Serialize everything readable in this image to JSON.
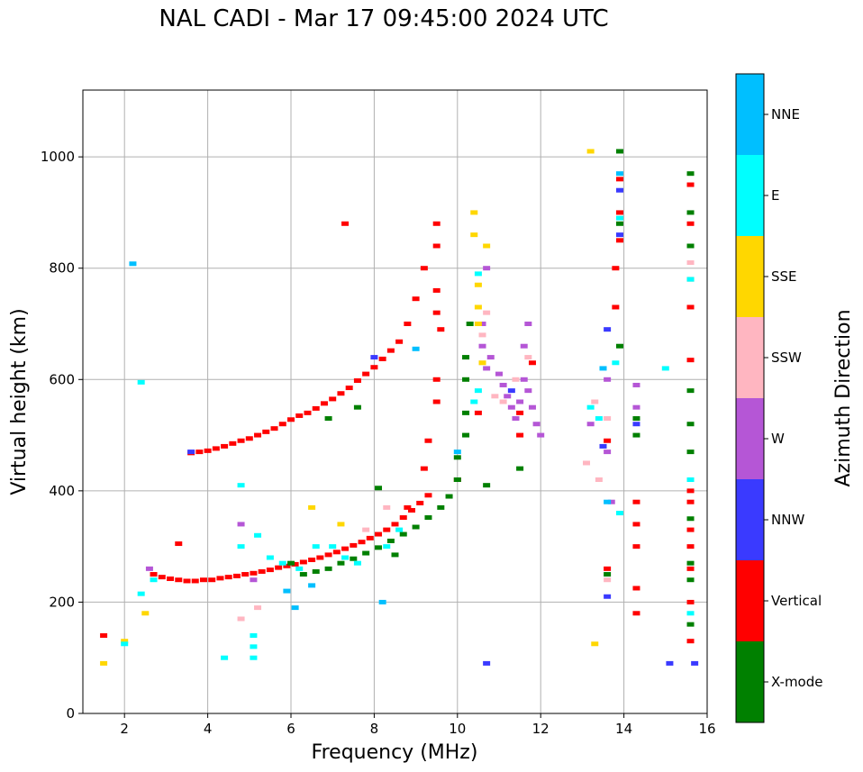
{
  "chart_data": {
    "type": "scatter",
    "title": "NAL CADI - Mar 17 09:45:00 2024 UTC",
    "xlabel": "Frequency (MHz)",
    "ylabel": "Virtual height (km)",
    "xlim": [
      1,
      16
    ],
    "ylim": [
      0,
      1120
    ],
    "xticks": [
      2,
      4,
      6,
      8,
      10,
      12,
      14,
      16
    ],
    "yticks": [
      0,
      200,
      400,
      600,
      800,
      1000
    ],
    "grid": true,
    "colorbar": {
      "label": "Azimuth Direction",
      "categories": [
        {
          "name": "X-mode",
          "color": "#008000"
        },
        {
          "name": "Vertical",
          "color": "#ff0000"
        },
        {
          "name": "NNW",
          "color": "#3a3aff"
        },
        {
          "name": "W",
          "color": "#b556d6"
        },
        {
          "name": "SSW",
          "color": "#ffb6c1"
        },
        {
          "name": "SSE",
          "color": "#ffd700"
        },
        {
          "name": "E",
          "color": "#00ffff"
        },
        {
          "name": "NNE",
          "color": "#00bfff"
        }
      ]
    },
    "series": [
      {
        "name": "Vertical",
        "points": [
          [
            2.7,
            250
          ],
          [
            2.9,
            245
          ],
          [
            3.1,
            242
          ],
          [
            3.3,
            240
          ],
          [
            3.5,
            238
          ],
          [
            3.7,
            238
          ],
          [
            3.9,
            240
          ],
          [
            4.1,
            240
          ],
          [
            4.3,
            243
          ],
          [
            4.5,
            245
          ],
          [
            4.7,
            247
          ],
          [
            4.9,
            250
          ],
          [
            5.1,
            252
          ],
          [
            5.3,
            255
          ],
          [
            5.5,
            258
          ],
          [
            5.7,
            262
          ],
          [
            5.9,
            265
          ],
          [
            6.1,
            268
          ],
          [
            6.3,
            272
          ],
          [
            6.5,
            276
          ],
          [
            6.7,
            280
          ],
          [
            6.9,
            285
          ],
          [
            7.1,
            290
          ],
          [
            7.3,
            296
          ],
          [
            7.5,
            302
          ],
          [
            7.7,
            308
          ],
          [
            7.9,
            315
          ],
          [
            8.1,
            322
          ],
          [
            8.3,
            330
          ],
          [
            8.5,
            340
          ],
          [
            8.7,
            352
          ],
          [
            8.9,
            365
          ],
          [
            9.1,
            378
          ],
          [
            9.3,
            392
          ],
          [
            3.6,
            468
          ],
          [
            3.8,
            470
          ],
          [
            4.0,
            472
          ],
          [
            4.2,
            476
          ],
          [
            4.4,
            480
          ],
          [
            4.6,
            485
          ],
          [
            4.8,
            490
          ],
          [
            5.0,
            494
          ],
          [
            5.2,
            500
          ],
          [
            5.4,
            506
          ],
          [
            5.6,
            512
          ],
          [
            5.8,
            520
          ],
          [
            6.0,
            528
          ],
          [
            6.2,
            535
          ],
          [
            6.4,
            540
          ],
          [
            6.6,
            548
          ],
          [
            6.8,
            557
          ],
          [
            7.0,
            565
          ],
          [
            7.2,
            575
          ],
          [
            7.4,
            585
          ],
          [
            7.6,
            598
          ],
          [
            7.8,
            610
          ],
          [
            8.0,
            622
          ],
          [
            8.2,
            637
          ],
          [
            8.4,
            652
          ],
          [
            8.6,
            668
          ],
          [
            8.8,
            700
          ],
          [
            9.0,
            745
          ],
          [
            9.2,
            800
          ],
          [
            9.5,
            880
          ],
          [
            9.5,
            840
          ],
          [
            9.5,
            760
          ],
          [
            9.5,
            720
          ],
          [
            9.6,
            690
          ],
          [
            9.5,
            600
          ],
          [
            9.5,
            560
          ],
          [
            9.3,
            490
          ],
          [
            9.2,
            440
          ],
          [
            8.8,
            370
          ],
          [
            10.5,
            540
          ],
          [
            10.0,
            420
          ],
          [
            13.8,
            800
          ],
          [
            13.9,
            850
          ],
          [
            13.9,
            900
          ],
          [
            13.9,
            960
          ],
          [
            13.8,
            730
          ],
          [
            14.3,
            300
          ],
          [
            14.3,
            340
          ],
          [
            14.3,
            180
          ],
          [
            14.3,
            225
          ],
          [
            14.3,
            380
          ],
          [
            13.6,
            260
          ],
          [
            13.6,
            490
          ],
          [
            15.6,
            130
          ],
          [
            15.6,
            200
          ],
          [
            15.6,
            260
          ],
          [
            15.6,
            300
          ],
          [
            15.6,
            330
          ],
          [
            15.6,
            380
          ],
          [
            15.6,
            400
          ],
          [
            15.6,
            635
          ],
          [
            15.6,
            730
          ],
          [
            15.6,
            880
          ],
          [
            15.6,
            950
          ],
          [
            11.8,
            630
          ],
          [
            11.5,
            540
          ],
          [
            11.5,
            500
          ],
          [
            1.5,
            140
          ],
          [
            3.3,
            305
          ],
          [
            7.3,
            880
          ]
        ]
      },
      {
        "name": "X-mode",
        "points": [
          [
            6.0,
            270
          ],
          [
            6.3,
            250
          ],
          [
            6.6,
            255
          ],
          [
            6.9,
            260
          ],
          [
            7.2,
            270
          ],
          [
            7.5,
            278
          ],
          [
            7.8,
            288
          ],
          [
            8.1,
            298
          ],
          [
            8.4,
            310
          ],
          [
            8.7,
            322
          ],
          [
            9.0,
            335
          ],
          [
            9.3,
            352
          ],
          [
            9.6,
            370
          ],
          [
            9.8,
            390
          ],
          [
            10.0,
            420
          ],
          [
            10.0,
            460
          ],
          [
            10.2,
            500
          ],
          [
            10.2,
            540
          ],
          [
            10.2,
            600
          ],
          [
            10.2,
            640
          ],
          [
            10.3,
            700
          ],
          [
            8.5,
            285
          ],
          [
            8.1,
            405
          ],
          [
            7.6,
            550
          ],
          [
            6.9,
            530
          ],
          [
            11.5,
            440
          ],
          [
            15.6,
            270
          ],
          [
            15.6,
            240
          ],
          [
            15.6,
            160
          ],
          [
            15.6,
            350
          ],
          [
            15.6,
            470
          ],
          [
            15.6,
            520
          ],
          [
            15.6,
            580
          ],
          [
            15.6,
            780
          ],
          [
            15.6,
            840
          ],
          [
            15.6,
            900
          ],
          [
            15.6,
            970
          ],
          [
            13.9,
            1010
          ],
          [
            13.9,
            880
          ],
          [
            13.9,
            660
          ],
          [
            13.6,
            250
          ],
          [
            14.3,
            500
          ],
          [
            14.3,
            530
          ],
          [
            10.7,
            410
          ]
        ]
      },
      {
        "name": "NNW",
        "points": [
          [
            13.9,
            940
          ],
          [
            13.9,
            860
          ],
          [
            13.6,
            690
          ],
          [
            13.6,
            210
          ],
          [
            13.5,
            480
          ],
          [
            10.7,
            90
          ],
          [
            15.1,
            90
          ],
          [
            8.0,
            640
          ],
          [
            3.6,
            470
          ],
          [
            15.7,
            90
          ],
          [
            14.3,
            520
          ],
          [
            11.3,
            580
          ]
        ]
      },
      {
        "name": "W",
        "points": [
          [
            10.6,
            700
          ],
          [
            10.6,
            660
          ],
          [
            10.7,
            620
          ],
          [
            10.8,
            640
          ],
          [
            11.0,
            610
          ],
          [
            11.1,
            590
          ],
          [
            11.2,
            570
          ],
          [
            11.3,
            550
          ],
          [
            11.4,
            530
          ],
          [
            11.5,
            560
          ],
          [
            11.6,
            600
          ],
          [
            11.7,
            580
          ],
          [
            11.8,
            550
          ],
          [
            11.9,
            520
          ],
          [
            12.0,
            500
          ],
          [
            11.6,
            660
          ],
          [
            11.7,
            700
          ],
          [
            10.7,
            800
          ],
          [
            13.6,
            600
          ],
          [
            13.6,
            470
          ],
          [
            14.3,
            590
          ],
          [
            14.3,
            550
          ],
          [
            13.2,
            520
          ],
          [
            2.6,
            260
          ],
          [
            4.8,
            340
          ],
          [
            5.1,
            240
          ],
          [
            13.7,
            380
          ]
        ]
      },
      {
        "name": "SSW",
        "points": [
          [
            10.6,
            680
          ],
          [
            10.7,
            720
          ],
          [
            10.6,
            630
          ],
          [
            10.9,
            570
          ],
          [
            11.1,
            560
          ],
          [
            11.4,
            600
          ],
          [
            11.7,
            640
          ],
          [
            13.3,
            560
          ],
          [
            13.6,
            530
          ],
          [
            13.4,
            420
          ],
          [
            15.6,
            810
          ],
          [
            13.6,
            240
          ],
          [
            13.1,
            450
          ],
          [
            7.8,
            330
          ],
          [
            8.3,
            370
          ],
          [
            4.8,
            170
          ],
          [
            5.2,
            190
          ]
        ]
      },
      {
        "name": "SSE",
        "points": [
          [
            10.4,
            900
          ],
          [
            10.4,
            860
          ],
          [
            10.5,
            770
          ],
          [
            10.5,
            730
          ],
          [
            10.6,
            630
          ],
          [
            10.7,
            840
          ],
          [
            10.5,
            700
          ],
          [
            13.2,
            1010
          ],
          [
            13.3,
            125
          ],
          [
            1.5,
            90
          ],
          [
            2.0,
            130
          ],
          [
            2.5,
            180
          ],
          [
            7.2,
            340
          ],
          [
            6.5,
            370
          ]
        ]
      },
      {
        "name": "E",
        "points": [
          [
            2.4,
            595
          ],
          [
            15.0,
            620
          ],
          [
            5.1,
            100
          ],
          [
            5.1,
            120
          ],
          [
            5.1,
            140
          ],
          [
            4.4,
            100
          ],
          [
            4.8,
            410
          ],
          [
            4.8,
            300
          ],
          [
            5.2,
            320
          ],
          [
            5.5,
            280
          ],
          [
            5.8,
            270
          ],
          [
            6.2,
            260
          ],
          [
            6.6,
            300
          ],
          [
            7.0,
            300
          ],
          [
            7.3,
            280
          ],
          [
            7.6,
            270
          ],
          [
            8.3,
            300
          ],
          [
            8.6,
            330
          ],
          [
            2.0,
            125
          ],
          [
            2.4,
            215
          ],
          [
            2.7,
            240
          ],
          [
            10.4,
            560
          ],
          [
            10.5,
            580
          ],
          [
            13.4,
            530
          ],
          [
            13.2,
            550
          ],
          [
            13.9,
            360
          ],
          [
            13.8,
            630
          ],
          [
            15.6,
            780
          ],
          [
            15.6,
            420
          ],
          [
            15.6,
            180
          ],
          [
            13.9,
            890
          ],
          [
            10.5,
            790
          ]
        ]
      },
      {
        "name": "NNE",
        "points": [
          [
            13.9,
            970
          ],
          [
            13.6,
            380
          ],
          [
            13.5,
            620
          ],
          [
            8.2,
            200
          ],
          [
            6.5,
            230
          ],
          [
            5.9,
            220
          ],
          [
            6.1,
            190
          ],
          [
            10.0,
            470
          ],
          [
            2.2,
            808
          ],
          [
            9.0,
            655
          ]
        ]
      }
    ]
  }
}
